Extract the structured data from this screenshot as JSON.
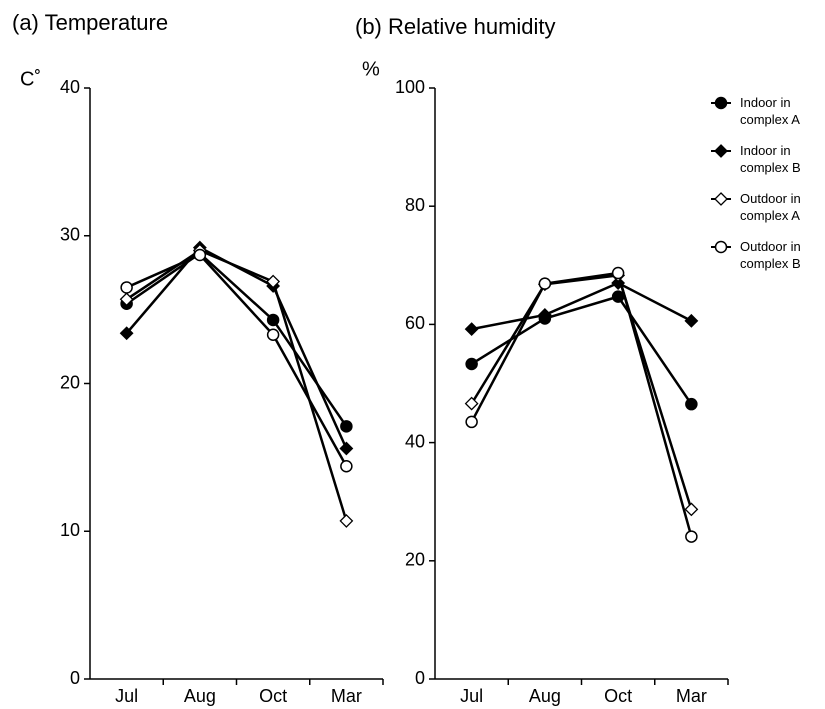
{
  "chart_data": [
    {
      "type": "line",
      "title": "(a) Temperature",
      "y_label": "C˚",
      "categories": [
        "Jul",
        "Aug",
        "Oct",
        "Mar"
      ],
      "ylim": [
        0,
        40
      ],
      "yticks": [
        0,
        10,
        20,
        30,
        40
      ],
      "series": [
        {
          "color": "#000000",
          "marker": "circle",
          "marker_fill": "#000000",
          "values": [
            25.4,
            28.8,
            24.3,
            17.1
          ]
        },
        {
          "color": "#000000",
          "marker": "diamond",
          "marker_fill": "#000000",
          "values": [
            23.4,
            29.2,
            26.6,
            15.6
          ]
        },
        {
          "color": "#000000",
          "marker": "diamond",
          "marker_fill": "#ffffff",
          "values": [
            25.7,
            29.0,
            26.9,
            10.7
          ]
        },
        {
          "color": "#000000",
          "marker": "circle",
          "marker_fill": "#ffffff",
          "values": [
            26.5,
            28.7,
            23.3,
            14.4
          ]
        }
      ]
    },
    {
      "type": "line",
      "title": "(b) Relative humidity",
      "y_label": "%",
      "categories": [
        "Jul",
        "Aug",
        "Oct",
        "Mar"
      ],
      "ylim": [
        0,
        100
      ],
      "yticks": [
        0,
        20,
        40,
        60,
        80,
        100
      ],
      "legend": "upper right",
      "series": [
        {
          "name": "Indoor in complex A",
          "color": "#000000",
          "marker": "circle",
          "marker_fill": "#000000",
          "values": [
            53.3,
            61.0,
            64.7,
            46.5
          ]
        },
        {
          "name": "Indoor in complex B",
          "color": "#000000",
          "marker": "diamond",
          "marker_fill": "#000000",
          "values": [
            59.2,
            61.6,
            67.0,
            60.6
          ]
        },
        {
          "name": "Outdoor in complex A",
          "color": "#000000",
          "marker": "diamond",
          "marker_fill": "#ffffff",
          "values": [
            46.6,
            66.8,
            68.3,
            28.7
          ]
        },
        {
          "name": "Outdoor in complex B",
          "color": "#000000",
          "marker": "circle",
          "marker_fill": "#ffffff",
          "values": [
            43.5,
            66.9,
            68.7,
            24.1
          ]
        }
      ]
    }
  ]
}
